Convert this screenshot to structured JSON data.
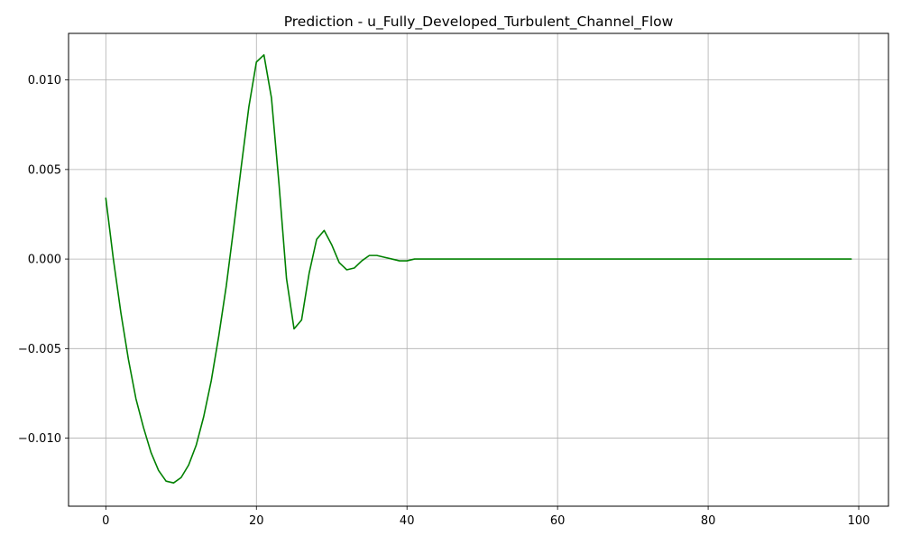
{
  "chart_data": {
    "type": "line",
    "title": "Prediction - u_Fully_Developed_Turbulent_Channel_Flow",
    "xlabel": "",
    "ylabel": "",
    "xlim": [
      -4.95,
      103.95
    ],
    "ylim": [
      -0.0138,
      0.0126
    ],
    "x_ticks": [
      0,
      20,
      40,
      60,
      80,
      100
    ],
    "x_tick_labels": [
      "0",
      "20",
      "40",
      "60",
      "80",
      "100"
    ],
    "y_ticks": [
      -0.01,
      -0.005,
      0.0,
      0.005,
      0.01
    ],
    "y_tick_labels": [
      "−0.010",
      "−0.005",
      "0.000",
      "0.005",
      "0.010"
    ],
    "grid": true,
    "line_color": "#008000",
    "grid_color": "#b0b0b0",
    "series": [
      {
        "x": [
          0,
          1,
          2,
          3,
          4,
          5,
          6,
          7,
          8,
          9,
          10,
          11,
          12,
          13,
          14,
          15,
          16,
          17,
          18,
          19,
          20,
          21,
          22,
          23,
          24,
          25,
          26,
          27,
          28,
          29,
          30,
          31,
          32,
          33,
          34,
          35,
          36,
          37,
          38,
          39,
          40,
          41,
          42,
          43,
          44,
          45,
          46,
          47,
          48,
          49,
          50,
          51,
          52,
          53,
          54,
          55,
          56,
          57,
          58,
          59,
          60,
          61,
          62,
          63,
          64,
          65,
          66,
          67,
          68,
          69,
          70,
          71,
          72,
          73,
          74,
          75,
          76,
          77,
          78,
          79,
          80,
          81,
          82,
          83,
          84,
          85,
          86,
          87,
          88,
          89,
          90,
          91,
          92,
          93,
          94,
          95,
          96,
          97,
          98,
          99
        ],
        "values": [
          0.0034,
          0.0,
          -0.003,
          -0.0056,
          -0.0078,
          -0.0094,
          -0.0108,
          -0.0118,
          -0.0124,
          -0.0125,
          -0.0122,
          -0.0115,
          -0.0104,
          -0.0088,
          -0.0068,
          -0.0043,
          -0.0015,
          0.0018,
          0.0052,
          0.0085,
          0.011,
          0.0114,
          0.009,
          0.0042,
          -0.0011,
          -0.0039,
          -0.0034,
          -0.0008,
          0.0011,
          0.0016,
          0.0008,
          -0.0002,
          -0.0006,
          -0.0005,
          -0.0001,
          0.0002,
          0.0002,
          0.0001,
          0.0,
          -0.0001,
          -0.0001,
          0.0,
          0.0,
          0.0,
          0.0,
          0.0,
          0.0,
          0.0,
          0.0,
          0.0,
          0.0,
          0.0,
          0.0,
          0.0,
          0.0,
          0.0,
          0.0,
          0.0,
          0.0,
          0.0,
          0.0,
          0.0,
          0.0,
          0.0,
          0.0,
          0.0,
          0.0,
          0.0,
          0.0,
          0.0,
          0.0,
          0.0,
          0.0,
          0.0,
          0.0,
          0.0,
          0.0,
          0.0,
          0.0,
          0.0,
          0.0,
          0.0,
          0.0,
          0.0,
          0.0,
          0.0,
          0.0,
          0.0,
          0.0,
          0.0,
          0.0,
          0.0,
          0.0,
          0.0,
          0.0,
          0.0,
          0.0,
          0.0,
          0.0,
          0.0
        ]
      }
    ]
  }
}
